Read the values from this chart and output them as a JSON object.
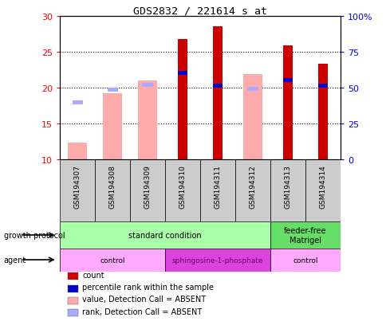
{
  "title": "GDS2832 / 221614_s_at",
  "samples": [
    "GSM194307",
    "GSM194308",
    "GSM194309",
    "GSM194310",
    "GSM194311",
    "GSM194312",
    "GSM194313",
    "GSM194314"
  ],
  "ylim_left": [
    10,
    30
  ],
  "ylim_right": [
    0,
    100
  ],
  "yticks_left": [
    10,
    15,
    20,
    25,
    30
  ],
  "yticks_right": [
    0,
    25,
    50,
    75,
    100
  ],
  "count_values": [
    null,
    null,
    null,
    26.8,
    28.5,
    null,
    25.9,
    23.3
  ],
  "rank_values": [
    null,
    null,
    null,
    22.0,
    20.2,
    null,
    21.0,
    20.3
  ],
  "value_absent": [
    12.3,
    19.2,
    21.0,
    null,
    null,
    21.9,
    null,
    null
  ],
  "rank_absent": [
    17.9,
    19.7,
    20.4,
    null,
    null,
    19.8,
    null,
    null
  ],
  "colors": {
    "count": "#cc0000",
    "rank": "#0000cc",
    "value_absent": "#ffaaaa",
    "rank_absent": "#aaaaff",
    "growth_std": "#aaffaa",
    "growth_ff": "#66dd66",
    "agent_light": "#ffaaff",
    "agent_dark": "#dd44dd",
    "sample_bg": "#cccccc",
    "plot_bg": "#ffffff"
  },
  "growth_protocol": {
    "groups": [
      {
        "label": "standard condition",
        "start": 0,
        "end": 6
      },
      {
        "label": "feeder-free\nMatrigel",
        "start": 6,
        "end": 8
      }
    ]
  },
  "agent": {
    "groups": [
      {
        "label": "control",
        "start": 0,
        "end": 3
      },
      {
        "label": "sphingosine-1-phosphate",
        "start": 3,
        "end": 6
      },
      {
        "label": "control",
        "start": 6,
        "end": 8
      }
    ]
  },
  "legend": [
    {
      "color": "#cc0000",
      "label": "count"
    },
    {
      "color": "#0000cc",
      "label": "percentile rank within the sample"
    },
    {
      "color": "#ffaaaa",
      "label": "value, Detection Call = ABSENT"
    },
    {
      "color": "#aaaaff",
      "label": "rank, Detection Call = ABSENT"
    }
  ]
}
